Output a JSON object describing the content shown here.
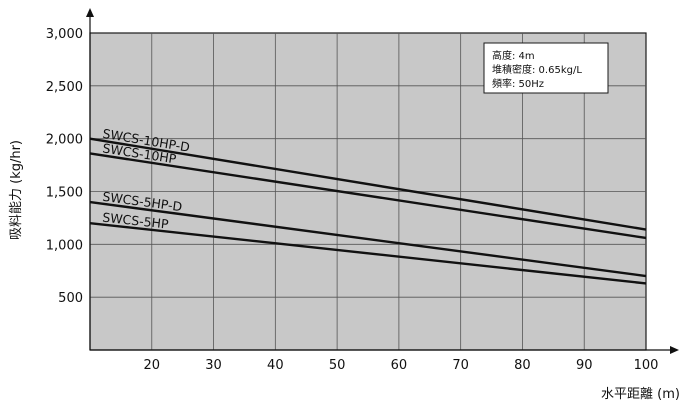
{
  "chart_data": {
    "type": "line",
    "ylabel": "吸料能力 (kg/hr)",
    "xlabel": "水平距離 (m)",
    "xlim": [
      10,
      100
    ],
    "ylim": [
      0,
      3000
    ],
    "x_ticks": [
      20,
      30,
      40,
      50,
      60,
      70,
      80,
      90,
      100
    ],
    "y_ticks": [
      500,
      1000,
      1500,
      2000,
      2500,
      3000
    ],
    "y_tick_labels": [
      "500",
      "1,000",
      "1,500",
      "2,000",
      "2,500",
      "3,000"
    ],
    "grid": true,
    "series": [
      {
        "name": "SWCS-10HP-D",
        "x": [
          10,
          100
        ],
        "values": [
          2000,
          1140
        ]
      },
      {
        "name": "SWCS-10HP",
        "x": [
          10,
          100
        ],
        "values": [
          1860,
          1060
        ]
      },
      {
        "name": "SWCS-5HP-D",
        "x": [
          10,
          100
        ],
        "values": [
          1400,
          700
        ]
      },
      {
        "name": "SWCS-5HP",
        "x": [
          10,
          100
        ],
        "values": [
          1200,
          630
        ]
      }
    ],
    "annotation": [
      "高度: 4m",
      "堆積密度: 0.65kg/L",
      "頻率: 50Hz"
    ]
  }
}
